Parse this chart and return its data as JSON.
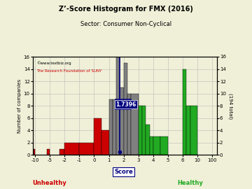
{
  "title": "Z’-Score Histogram for FMX (2016)",
  "subtitle": "Sector: Consumer Non-Cyclical",
  "watermark1": "©www.textbiz.org",
  "watermark2": "The Research Foundation of SUNY",
  "xlabel_center": "Score",
  "xlabel_left": "Unhealthy",
  "xlabel_right": "Healthy",
  "ylabel": "Number of companies",
  "ylabel_right": "(194 total)",
  "fmx_score": 1.7396,
  "fmx_label": "1.7396",
  "tick_scores": [
    -10,
    -5,
    -2,
    -1,
    0,
    1,
    2,
    3,
    4,
    5,
    6,
    10,
    100
  ],
  "yticks": [
    0,
    2,
    4,
    6,
    8,
    10,
    12,
    14,
    16
  ],
  "ylim": [
    0,
    16
  ],
  "bg_color": "#f0f0d8",
  "grid_color": "#bbbbbb",
  "bar_defs": [
    [
      -11,
      -10,
      1,
      "#cc0000"
    ],
    [
      -6,
      -5,
      1,
      "#cc0000"
    ],
    [
      -3,
      -2,
      1,
      "#cc0000"
    ],
    [
      -2,
      -1,
      2,
      "#cc0000"
    ],
    [
      -1,
      0,
      2,
      "#cc0000"
    ],
    [
      0,
      0.5,
      6,
      "#cc0000"
    ],
    [
      0.5,
      1,
      4,
      "#cc0000"
    ],
    [
      1.0,
      1.25,
      9,
      "#808080"
    ],
    [
      1.25,
      1.5,
      9,
      "#808080"
    ],
    [
      1.5,
      1.75,
      16,
      "#808080"
    ],
    [
      1.75,
      2.0,
      11,
      "#808080"
    ],
    [
      2.0,
      2.25,
      15,
      "#808080"
    ],
    [
      2.25,
      2.5,
      10,
      "#808080"
    ],
    [
      2.5,
      3.0,
      10,
      "#808080"
    ],
    [
      3.0,
      3.25,
      8,
      "#22aa22"
    ],
    [
      3.25,
      3.5,
      8,
      "#22aa22"
    ],
    [
      3.5,
      3.75,
      5,
      "#22aa22"
    ],
    [
      3.75,
      4.0,
      3,
      "#22aa22"
    ],
    [
      4.0,
      4.5,
      3,
      "#22aa22"
    ],
    [
      4.5,
      5.0,
      3,
      "#22aa22"
    ],
    [
      6.0,
      7.0,
      14,
      "#22aa22"
    ],
    [
      7.0,
      8.0,
      8,
      "#22aa22"
    ],
    [
      8.0,
      10.0,
      8,
      "#22aa22"
    ]
  ]
}
